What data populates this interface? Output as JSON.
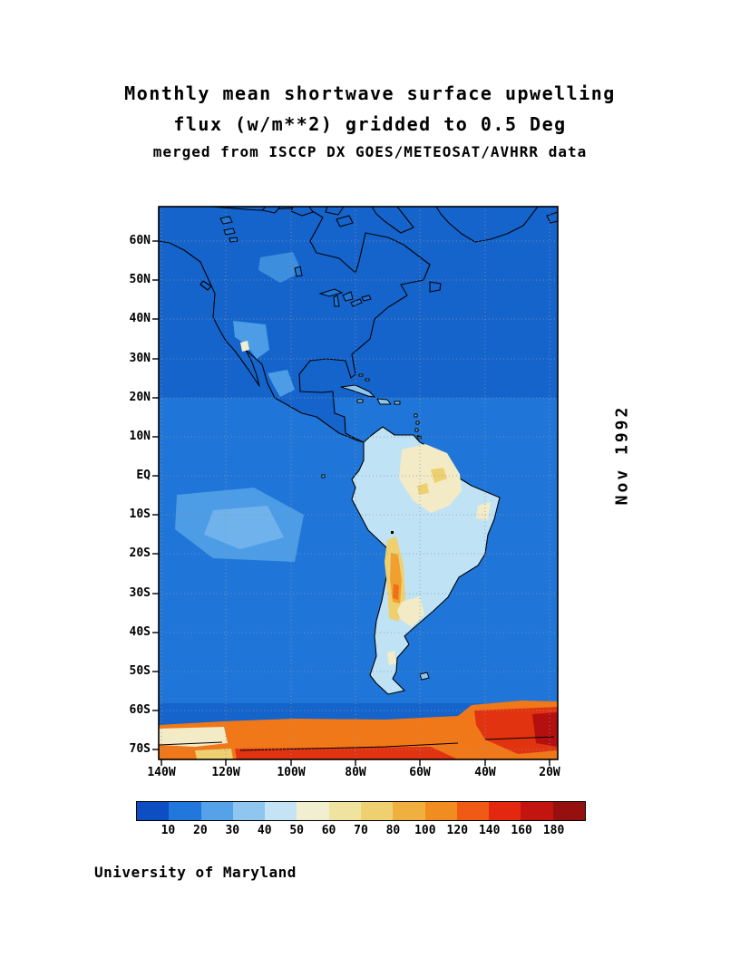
{
  "title": {
    "line1": "Monthly mean shortwave surface upwelling",
    "line2": "flux (w/m**2) gridded to 0.5 Deg",
    "line3": "merged from ISCCP DX GOES/METEOSAT/AVHRR data"
  },
  "side_label": "Nov 1992",
  "credit": "University of Maryland",
  "map": {
    "lat_ticks": [
      "60N",
      "50N",
      "40N",
      "30N",
      "20N",
      "10N",
      "EQ",
      "10S",
      "20S",
      "30S",
      "40S",
      "50S",
      "60S",
      "70S"
    ],
    "lon_ticks": [
      "140W",
      "120W",
      "100W",
      "80W",
      "60W",
      "40W",
      "20W"
    ]
  },
  "colorbar": {
    "tick_labels": [
      "10",
      "20",
      "30",
      "40",
      "50",
      "60",
      "70",
      "80",
      "100",
      "120",
      "140",
      "160",
      "180"
    ],
    "colors": [
      "#0D4EC2",
      "#2277DD",
      "#55A2E8",
      "#8FC6F0",
      "#C4E4F6",
      "#F2EFD0",
      "#F0E3A0",
      "#EFD070",
      "#F0B040",
      "#F08C20",
      "#F05A14",
      "#E42810",
      "#C41410",
      "#961010"
    ]
  },
  "chart_data": {
    "type": "heatmap",
    "title": "Monthly mean shortwave surface upwelling flux (w/m**2) gridded to 0.5 Deg",
    "subtitle": "merged from ISCCP DX GOES/METEOSAT/AVHRR data",
    "date": "Nov 1992",
    "units": "w/m**2",
    "colorbar_boundaries": [
      10,
      20,
      30,
      40,
      50,
      60,
      70,
      80,
      100,
      120,
      140,
      160,
      180
    ],
    "lat_axis_labels": [
      "60N",
      "50N",
      "40N",
      "30N",
      "20N",
      "10N",
      "EQ",
      "10S",
      "20S",
      "30S",
      "40S",
      "50S",
      "60S",
      "70S"
    ],
    "lon_axis_labels": [
      "140W",
      "120W",
      "100W",
      "80W",
      "60W",
      "40W",
      "20W"
    ],
    "qualitative_field_values": {
      "open_ocean": "10-20",
      "subtropical_stratus_ocean_patches": "20-30",
      "north_america_land": "10-40",
      "southwest_us_mexico_highlands": "30-40",
      "south_america_lowlands": "40-50",
      "amazon_interior_patches": "50-70",
      "andes_ridge": "70-120",
      "argentina_interior": "50-60",
      "antarctic_sea_ice_band_60S_70S": "50-180"
    }
  }
}
